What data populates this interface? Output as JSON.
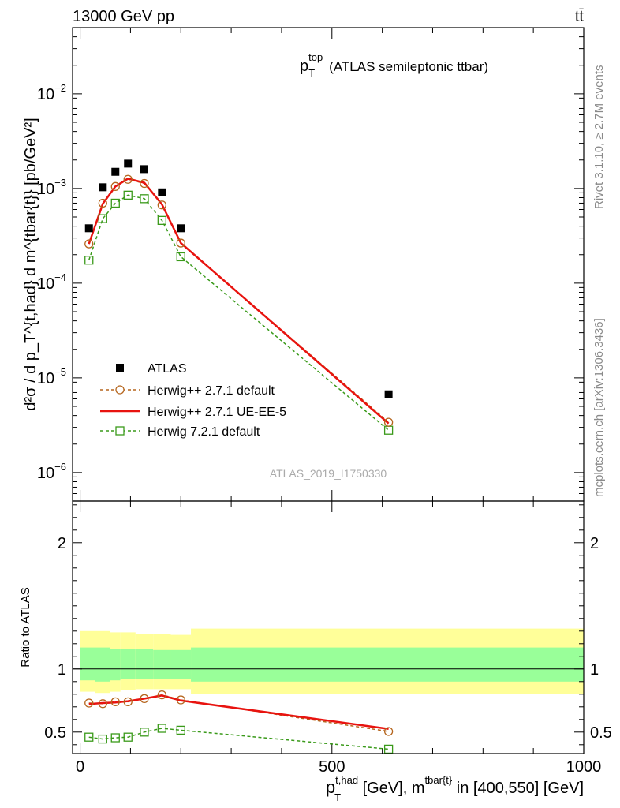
{
  "header": {
    "left": "13000 GeV pp",
    "right": "tt̄"
  },
  "side_labels": {
    "rivet": "Rivet 3.1.10, ≥ 2.7M events",
    "mcplots": "mcplots.cern.ch [arXiv:1306.3436]"
  },
  "colors": {
    "atlas": "#000000",
    "herwigpp_default": "#b5651d",
    "herwigpp_ueee5": "#e8130f",
    "herwig721": "#3a9a1a",
    "band_outer": "#ffff99",
    "band_inner": "#99ff99"
  },
  "chart_data": [
    {
      "type": "line",
      "title_main": "p",
      "title_sup": "top",
      "title_sub": "T",
      "title_rest": "(ATLAS semileptonic ttbar)",
      "ylabel": "d²σ / d p_T^{t,had} d m^{tbar{t}} [pb/GeV²]",
      "yscale": "log",
      "ylim": [
        5e-07,
        0.05
      ],
      "xlim": [
        -15,
        1000
      ],
      "yticks": [
        {
          "base": "10",
          "exp": "−2",
          "value": 0.01
        },
        {
          "base": "10",
          "exp": "−3",
          "value": 0.001
        },
        {
          "base": "10",
          "exp": "−4",
          "value": 0.0001
        },
        {
          "base": "10",
          "exp": "−5",
          "value": 1e-05
        },
        {
          "base": "10",
          "exp": "−6",
          "value": 1e-06
        }
      ],
      "watermark": "ATLAS_2019_I1750330",
      "legend_position": "lower-left",
      "x": [
        17.5,
        45,
        70,
        95,
        127.5,
        162.5,
        200,
        612.5
      ],
      "series": [
        {
          "name": "ATLAS",
          "style": "marker-square-filled",
          "values": [
            0.00038,
            0.00103,
            0.0015,
            0.00183,
            0.0016,
            0.00091,
            0.00038,
            6.7e-06
          ]
        },
        {
          "name": "Herwig++ 2.7.1 default",
          "style": "dashed-circle",
          "values": [
            0.00026,
            0.0007,
            0.00105,
            0.00125,
            0.00113,
            0.00067,
            0.000265,
            3.4e-06
          ]
        },
        {
          "name": "Herwig++ 2.7.1 UE-EE-5",
          "style": "solid-thick",
          "values": [
            0.00026,
            0.00069,
            0.00105,
            0.00127,
            0.00115,
            0.00068,
            0.000265,
            3.3e-06
          ]
        },
        {
          "name": "Herwig 7.2.1 default",
          "style": "dashed-square",
          "values": [
            0.000175,
            0.00048,
            0.0007,
            0.00085,
            0.00078,
            0.00046,
            0.00019,
            2.8e-06
          ]
        }
      ]
    },
    {
      "type": "line",
      "ylabel": "Ratio to ATLAS",
      "ylim": [
        0.33,
        2.33
      ],
      "yticks": [
        {
          "label": "0.5",
          "value": 0.5
        },
        {
          "label": "1",
          "value": 1
        },
        {
          "label": "2",
          "value": 2
        }
      ],
      "xlim": [
        -15,
        1000
      ],
      "xticks": [
        {
          "label": "0",
          "value": 0
        },
        {
          "label": "500",
          "value": 500
        },
        {
          "label": "1000",
          "value": 1000
        }
      ],
      "xlabel_main": "p",
      "xlabel_sup": "t,had",
      "xlabel_sub": "T",
      "xlabel_mid": " [GeV], m",
      "xlabel_sup2": "tbar{t}",
      "xlabel_rest": " in [400,550] [GeV]",
      "x": [
        17.5,
        45,
        70,
        95,
        127.5,
        162.5,
        200,
        612.5
      ],
      "bands": {
        "edges": [
          0,
          30,
          60,
          80,
          110,
          145,
          180,
          220,
          1000
        ],
        "outer": [
          [
            0.82,
            1.3
          ],
          [
            0.81,
            1.3
          ],
          [
            0.82,
            1.29
          ],
          [
            0.83,
            1.29
          ],
          [
            0.84,
            1.28
          ],
          [
            0.84,
            1.28
          ],
          [
            0.84,
            1.27
          ],
          [
            0.8,
            1.32
          ]
        ],
        "inner": [
          [
            0.91,
            1.17
          ],
          [
            0.9,
            1.17
          ],
          [
            0.91,
            1.16
          ],
          [
            0.92,
            1.16
          ],
          [
            0.92,
            1.16
          ],
          [
            0.92,
            1.15
          ],
          [
            0.92,
            1.15
          ],
          [
            0.9,
            1.17
          ]
        ]
      },
      "series": [
        {
          "name": "Herwig++ 2.7.1 default",
          "values": [
            0.73,
            0.725,
            0.74,
            0.74,
            0.765,
            0.795,
            0.755,
            0.505
          ]
        },
        {
          "name": "Herwig++ 2.7.1 UE-EE-5",
          "values": [
            0.722,
            0.73,
            0.735,
            0.745,
            0.765,
            0.79,
            0.75,
            0.525
          ]
        },
        {
          "name": "Herwig 7.2.1 default",
          "values": [
            0.46,
            0.445,
            0.455,
            0.46,
            0.5,
            0.53,
            0.515,
            0.365
          ]
        }
      ]
    }
  ]
}
